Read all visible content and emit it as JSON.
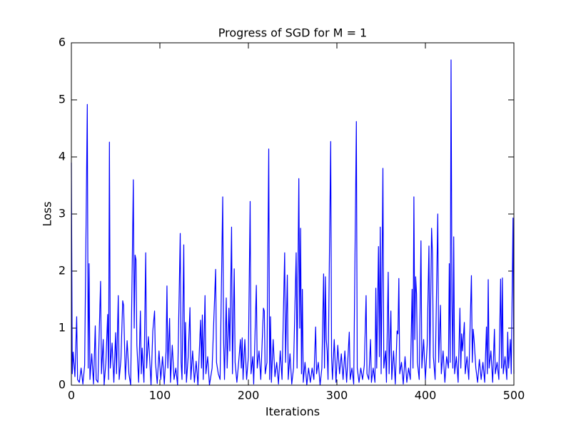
{
  "chart_data": {
    "type": "line",
    "title": "Progress of SGD for M = 1",
    "x_label": "Iterations",
    "y_label": "Loss",
    "xlim": [
      0,
      500
    ],
    "ylim": [
      0,
      6
    ],
    "xticks": [
      0,
      100,
      200,
      300,
      400,
      500
    ],
    "yticks": [
      0,
      1,
      2,
      3,
      4,
      5,
      6
    ],
    "grid": false,
    "color": "#0000ff",
    "x": [
      0,
      1,
      2,
      4,
      6,
      7,
      9,
      11,
      13,
      15,
      18,
      19,
      20,
      21,
      23,
      25,
      27,
      28,
      30,
      33,
      34,
      36,
      37,
      39,
      41,
      42,
      43,
      44,
      46,
      48,
      50,
      51,
      53,
      54,
      56,
      58,
      59,
      61,
      63,
      65,
      67,
      70,
      71,
      72,
      73,
      74,
      76,
      78,
      79,
      80,
      82,
      84,
      85,
      87,
      88,
      90,
      92,
      94,
      95,
      97,
      99,
      101,
      103,
      105,
      107,
      108,
      109,
      111,
      112,
      114,
      116,
      118,
      120,
      123,
      124,
      125,
      127,
      128,
      129,
      130,
      132,
      134,
      135,
      137,
      139,
      141,
      143,
      146,
      147,
      148,
      149,
      151,
      152,
      154,
      156,
      159,
      163,
      164,
      166,
      168,
      171,
      172,
      173,
      175,
      176,
      178,
      179,
      181,
      182,
      184,
      185,
      187,
      189,
      191,
      192,
      193,
      194,
      196,
      198,
      200,
      202,
      203,
      205,
      206,
      209,
      210,
      212,
      214,
      217,
      218,
      219,
      221,
      223,
      224,
      225,
      226,
      228,
      230,
      232,
      234,
      236,
      238,
      241,
      242,
      244,
      245,
      247,
      249,
      251,
      254,
      255,
      257,
      258,
      259,
      260,
      261,
      262,
      264,
      266,
      268,
      270,
      272,
      274,
      276,
      277,
      279,
      281,
      283,
      285,
      286,
      287,
      288,
      289,
      290,
      293,
      294,
      295,
      297,
      299,
      301,
      303,
      305,
      307,
      309,
      311,
      314,
      315,
      317,
      319,
      322,
      323,
      325,
      327,
      329,
      331,
      333,
      334,
      336,
      338,
      339,
      341,
      343,
      344,
      345,
      347,
      348,
      349,
      350,
      352,
      353,
      355,
      356,
      358,
      359,
      361,
      362,
      364,
      366,
      368,
      369,
      370,
      371,
      373,
      375,
      377,
      379,
      381,
      383,
      385,
      386,
      387,
      388,
      389,
      390,
      391,
      393,
      395,
      396,
      398,
      400,
      402,
      404,
      405,
      407,
      408,
      409,
      411,
      414,
      415,
      417,
      418,
      420,
      422,
      424,
      426,
      427,
      428,
      429,
      430,
      431,
      432,
      433,
      435,
      437,
      439,
      440,
      441,
      442,
      444,
      445,
      447,
      449,
      452,
      453,
      454,
      455,
      457,
      459,
      461,
      463,
      465,
      467,
      469,
      470,
      471,
      472,
      474,
      476,
      478,
      479,
      481,
      483,
      485,
      486,
      487,
      488,
      490,
      492,
      493,
      494,
      496,
      497,
      499,
      500
    ],
    "values": [
      3.9,
      0.2,
      0.58,
      0.15,
      1.2,
      0.1,
      0.05,
      0.3,
      0.02,
      0.35,
      4.92,
      0.3,
      2.13,
      0.1,
      0.55,
      0.02,
      1.04,
      0.1,
      0.05,
      1.82,
      0.2,
      0.8,
      0,
      0.4,
      1.24,
      0.1,
      4.26,
      0.3,
      0.74,
      0.05,
      0.92,
      0.2,
      1.57,
      0.1,
      0.45,
      1.48,
      1.4,
      0.1,
      0.78,
      0.2,
      0,
      3.6,
      1.0,
      2.28,
      2.2,
      0.7,
      0.05,
      1.3,
      0.2,
      0.65,
      0.05,
      2.32,
      0.3,
      0.85,
      0.6,
      0,
      0.95,
      1.3,
      0.4,
      0.03,
      0.6,
      0.1,
      0.5,
      0.02,
      0.6,
      1.74,
      0.3,
      1.17,
      0.05,
      0.7,
      0.1,
      0.3,
      0,
      2.66,
      0.4,
      0.1,
      2.46,
      0.2,
      1.1,
      0.05,
      0.5,
      1.36,
      0.1,
      0.6,
      0.05,
      0.42,
      0,
      1.14,
      0.3,
      1.23,
      0.1,
      1.57,
      0.2,
      0.5,
      0,
      0.3,
      2.03,
      0.4,
      0.2,
      0.1,
      3.3,
      0.8,
      0.1,
      1.53,
      0.3,
      1.35,
      0.6,
      2.77,
      0.2,
      2.04,
      0.4,
      0.05,
      0.4,
      0.8,
      0.3,
      0.83,
      0.1,
      0.8,
      0.1,
      0.5,
      3.22,
      0.2,
      0.5,
      0.02,
      1.75,
      0.3,
      0.6,
      0.1,
      1.35,
      1.3,
      0.2,
      0.4,
      4.14,
      0.1,
      1.2,
      0.05,
      0.8,
      0.15,
      0.4,
      0.02,
      0.6,
      0.1,
      2.32,
      0.4,
      1.93,
      0.1,
      0.55,
      0.02,
      0.3,
      2.32,
      0.3,
      3.62,
      1.0,
      2.75,
      0.2,
      1.68,
      0.05,
      0.4,
      0,
      0.3,
      0.05,
      0.3,
      0.1,
      1.02,
      0.2,
      0.4,
      0,
      0.3,
      1.95,
      0.3,
      1.9,
      0.8,
      0.6,
      0.1,
      4.27,
      0.5,
      0.1,
      0.8,
      0.05,
      0.7,
      0.2,
      0.55,
      0.1,
      0.6,
      0.05,
      0.93,
      0.1,
      0.3,
      0.02,
      4.62,
      0.3,
      0.05,
      0.3,
      0.1,
      0.35,
      1.57,
      0.2,
      0.1,
      0.8,
      0.05,
      0.3,
      0.05,
      1.7,
      0.3,
      2.43,
      0.5,
      2.77,
      0.2,
      3.8,
      0.3,
      0.6,
      0.05,
      1.98,
      0.2,
      1.3,
      0.1,
      0.6,
      0.02,
      0.95,
      0.9,
      1.87,
      0.2,
      0.4,
      0.02,
      0.5,
      0.05,
      0.3,
      0.1,
      1.68,
      0.3,
      3.3,
      0.8,
      1.9,
      1.6,
      0.4,
      0.1,
      2.53,
      0.3,
      0.8,
      0.1,
      0.7,
      2.44,
      0.3,
      2.75,
      2.3,
      0.5,
      0.1,
      3.0,
      0.4,
      1.4,
      0.2,
      0.6,
      0.05,
      0.5,
      0.3,
      2.13,
      0.4,
      5.7,
      1.5,
      0.3,
      2.6,
      0.2,
      0.5,
      0.05,
      1.35,
      0.3,
      0.9,
      0.6,
      1.1,
      0.2,
      0.5,
      0.1,
      1.92,
      0.4,
      0.98,
      0.8,
      0.3,
      0.05,
      0.45,
      0.1,
      0.4,
      0.05,
      1.02,
      0.2,
      1.85,
      0.3,
      0.6,
      0.05,
      0.98,
      0.2,
      0.4,
      0.1,
      1.86,
      0.3,
      1.88,
      0.2,
      0.5,
      0.1,
      0.93,
      0.3,
      0.8,
      0.2,
      2.93,
      0.2
    ]
  }
}
